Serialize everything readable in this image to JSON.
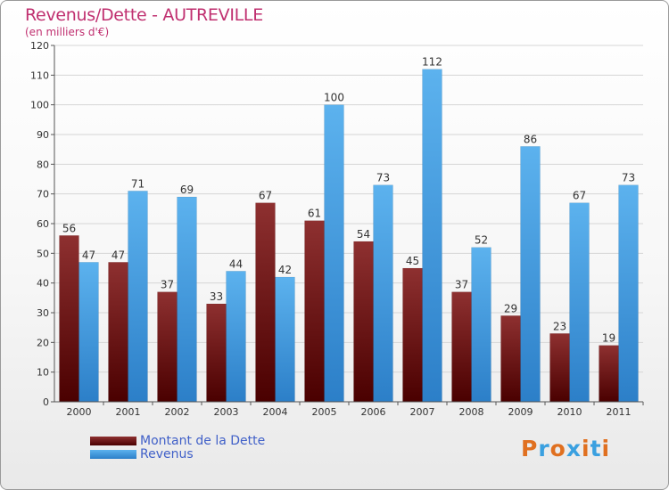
{
  "header": {
    "title": "Revenus/Dette - AUTREVILLE",
    "subtitle": "(en milliers d'€)"
  },
  "colors": {
    "title": "#c03070",
    "dette": "#7a1a1a",
    "revenus": "#4aa3e6",
    "legend_text": "#4060c8",
    "axis": "#555555"
  },
  "logo": {
    "text": "Proxiti",
    "letters": [
      "P",
      "r",
      "o",
      "x",
      "i",
      "t",
      "i"
    ],
    "letter_colors": [
      "#e07020",
      "#3aa0e0",
      "#e07020",
      "#3aa0e0",
      "#e07020",
      "#3aa0e0",
      "#e07020"
    ]
  },
  "chart_data": {
    "type": "bar",
    "title": "Revenus/Dette - AUTREVILLE",
    "subtitle": "(en milliers d'€)",
    "categories": [
      "2000",
      "2001",
      "2002",
      "2003",
      "2004",
      "2005",
      "2006",
      "2007",
      "2008",
      "2009",
      "2010",
      "2011"
    ],
    "series": [
      {
        "name": "Montant de la Dette",
        "color": "#7a1a1a",
        "values": [
          56,
          47,
          37,
          33,
          67,
          61,
          54,
          45,
          37,
          29,
          23,
          19
        ]
      },
      {
        "name": "Revenus",
        "color": "#4aa3e6",
        "values": [
          47,
          71,
          69,
          44,
          42,
          100,
          73,
          112,
          52,
          86,
          67,
          73
        ]
      }
    ],
    "ylim": [
      0,
      120
    ],
    "yticks": [
      0,
      10,
      20,
      30,
      40,
      50,
      60,
      70,
      80,
      90,
      100,
      110,
      120
    ],
    "grid": true,
    "legend_position": "bottom-left"
  }
}
